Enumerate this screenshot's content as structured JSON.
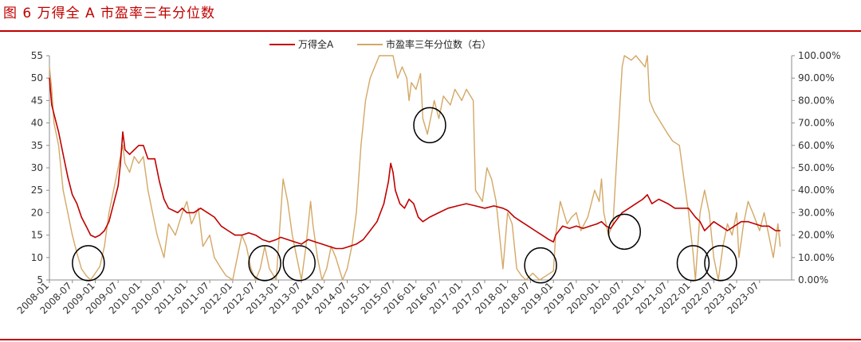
{
  "figure": {
    "title": "图 6 万得全 A 市盈率三年分位数"
  },
  "chart_data": {
    "type": "line",
    "x_labels": [
      "2008-01",
      "2008-07",
      "2009-01",
      "2009-07",
      "2010-01",
      "2010-07",
      "2011-01",
      "2011-07",
      "2012-01",
      "2012-07",
      "2013-01",
      "2013-07",
      "2014-01",
      "2014-07",
      "2015-01",
      "2015-07",
      "2016-01",
      "2016-07",
      "2017-01",
      "2017-07",
      "2018-01",
      "2018-07",
      "2019-01",
      "2019-07",
      "2020-01",
      "2020-07",
      "2021-01",
      "2021-07",
      "2022-01",
      "2022-07",
      "2023-01",
      "2023-07"
    ],
    "y_left": {
      "min": 5,
      "max": 55,
      "ticks": [
        5,
        10,
        15,
        20,
        25,
        30,
        35,
        40,
        45,
        50,
        55
      ]
    },
    "y_right": {
      "min": 0,
      "max": 100,
      "ticks": [
        "0.00%",
        "10.00%",
        "20.00%",
        "30.00%",
        "40.00%",
        "50.00%",
        "60.00%",
        "70.00%",
        "80.00%",
        "90.00%",
        "100.00%"
      ]
    },
    "legend_position": "top-center",
    "grid": false,
    "series": [
      {
        "name": "万得全A",
        "axis": "left",
        "color": "#c00000",
        "points": [
          [
            2008.0,
            50
          ],
          [
            2008.05,
            44
          ],
          [
            2008.1,
            42
          ],
          [
            2008.2,
            38
          ],
          [
            2008.3,
            33
          ],
          [
            2008.4,
            28
          ],
          [
            2008.5,
            24
          ],
          [
            2008.6,
            22
          ],
          [
            2008.7,
            19
          ],
          [
            2008.8,
            17
          ],
          [
            2008.9,
            15
          ],
          [
            2009.0,
            14.5
          ],
          [
            2009.1,
            15
          ],
          [
            2009.2,
            16
          ],
          [
            2009.3,
            18
          ],
          [
            2009.4,
            22
          ],
          [
            2009.5,
            26
          ],
          [
            2009.55,
            31
          ],
          [
            2009.6,
            38
          ],
          [
            2009.65,
            34
          ],
          [
            2009.75,
            33
          ],
          [
            2009.85,
            34
          ],
          [
            2009.95,
            35
          ],
          [
            2010.05,
            35
          ],
          [
            2010.15,
            32
          ],
          [
            2010.3,
            32
          ],
          [
            2010.4,
            27
          ],
          [
            2010.5,
            23
          ],
          [
            2010.6,
            21
          ],
          [
            2010.8,
            20
          ],
          [
            2010.9,
            21
          ],
          [
            2011.0,
            20
          ],
          [
            2011.15,
            20
          ],
          [
            2011.3,
            21
          ],
          [
            2011.45,
            20
          ],
          [
            2011.6,
            19
          ],
          [
            2011.75,
            17
          ],
          [
            2011.9,
            16
          ],
          [
            2012.05,
            15
          ],
          [
            2012.2,
            15
          ],
          [
            2012.35,
            15.5
          ],
          [
            2012.5,
            15
          ],
          [
            2012.65,
            14
          ],
          [
            2012.8,
            13.5
          ],
          [
            2012.95,
            14
          ],
          [
            2013.05,
            14.5
          ],
          [
            2013.2,
            14
          ],
          [
            2013.35,
            13.5
          ],
          [
            2013.5,
            13
          ],
          [
            2013.65,
            14
          ],
          [
            2013.8,
            13.5
          ],
          [
            2013.95,
            13
          ],
          [
            2014.1,
            12.5
          ],
          [
            2014.25,
            12
          ],
          [
            2014.4,
            12
          ],
          [
            2014.55,
            12.5
          ],
          [
            2014.7,
            13
          ],
          [
            2014.85,
            14
          ],
          [
            2015.0,
            16
          ],
          [
            2015.15,
            18
          ],
          [
            2015.3,
            22
          ],
          [
            2015.4,
            27
          ],
          [
            2015.45,
            31
          ],
          [
            2015.5,
            29
          ],
          [
            2015.55,
            25
          ],
          [
            2015.65,
            22
          ],
          [
            2015.75,
            21
          ],
          [
            2015.85,
            23
          ],
          [
            2015.95,
            22
          ],
          [
            2016.05,
            19
          ],
          [
            2016.15,
            18
          ],
          [
            2016.3,
            19
          ],
          [
            2016.5,
            20
          ],
          [
            2016.7,
            21
          ],
          [
            2016.9,
            21.5
          ],
          [
            2017.1,
            22
          ],
          [
            2017.3,
            21.5
          ],
          [
            2017.5,
            21
          ],
          [
            2017.7,
            21.5
          ],
          [
            2017.9,
            21
          ],
          [
            2018.0,
            20.5
          ],
          [
            2018.15,
            19
          ],
          [
            2018.3,
            18
          ],
          [
            2018.45,
            17
          ],
          [
            2018.6,
            16
          ],
          [
            2018.75,
            15
          ],
          [
            2018.9,
            14
          ],
          [
            2019.0,
            13.5
          ],
          [
            2019.05,
            15
          ],
          [
            2019.2,
            17
          ],
          [
            2019.35,
            16.5
          ],
          [
            2019.5,
            17
          ],
          [
            2019.65,
            16.5
          ],
          [
            2019.8,
            17
          ],
          [
            2019.95,
            17.5
          ],
          [
            2020.05,
            18
          ],
          [
            2020.15,
            17
          ],
          [
            2020.25,
            16.5
          ],
          [
            2020.35,
            18
          ],
          [
            2020.5,
            20
          ],
          [
            2020.65,
            21
          ],
          [
            2020.8,
            22
          ],
          [
            2020.95,
            23
          ],
          [
            2021.05,
            24
          ],
          [
            2021.15,
            22
          ],
          [
            2021.3,
            23
          ],
          [
            2021.5,
            22
          ],
          [
            2021.65,
            21
          ],
          [
            2021.8,
            21
          ],
          [
            2021.95,
            21
          ],
          [
            2022.1,
            19
          ],
          [
            2022.2,
            18
          ],
          [
            2022.3,
            16
          ],
          [
            2022.4,
            17
          ],
          [
            2022.5,
            18
          ],
          [
            2022.65,
            17
          ],
          [
            2022.8,
            16
          ],
          [
            2022.95,
            17
          ],
          [
            2023.1,
            18
          ],
          [
            2023.25,
            18
          ],
          [
            2023.4,
            17.5
          ],
          [
            2023.55,
            17
          ],
          [
            2023.7,
            17
          ],
          [
            2023.85,
            16
          ],
          [
            2023.95,
            16
          ]
        ]
      },
      {
        "name": "市盈率三年分位数（右）",
        "axis": "right",
        "color": "#d4a866",
        "points": [
          [
            2008.0,
            95
          ],
          [
            2008.05,
            85
          ],
          [
            2008.1,
            70
          ],
          [
            2008.2,
            60
          ],
          [
            2008.3,
            40
          ],
          [
            2008.4,
            30
          ],
          [
            2008.5,
            20
          ],
          [
            2008.6,
            12
          ],
          [
            2008.7,
            5
          ],
          [
            2008.8,
            2
          ],
          [
            2008.9,
            0
          ],
          [
            2009.0,
            3
          ],
          [
            2009.1,
            6
          ],
          [
            2009.2,
            15
          ],
          [
            2009.3,
            30
          ],
          [
            2009.4,
            40
          ],
          [
            2009.5,
            50
          ],
          [
            2009.55,
            55
          ],
          [
            2009.6,
            60
          ],
          [
            2009.65,
            52
          ],
          [
            2009.75,
            48
          ],
          [
            2009.85,
            55
          ],
          [
            2009.95,
            52
          ],
          [
            2010.05,
            55
          ],
          [
            2010.15,
            40
          ],
          [
            2010.25,
            30
          ],
          [
            2010.35,
            20
          ],
          [
            2010.5,
            10
          ],
          [
            2010.6,
            25
          ],
          [
            2010.75,
            20
          ],
          [
            2010.9,
            30
          ],
          [
            2011.0,
            35
          ],
          [
            2011.1,
            25
          ],
          [
            2011.25,
            32
          ],
          [
            2011.35,
            15
          ],
          [
            2011.5,
            20
          ],
          [
            2011.6,
            10
          ],
          [
            2011.75,
            5
          ],
          [
            2011.85,
            2
          ],
          [
            2012.0,
            0
          ],
          [
            2012.1,
            10
          ],
          [
            2012.2,
            20
          ],
          [
            2012.3,
            15
          ],
          [
            2012.4,
            5
          ],
          [
            2012.5,
            0
          ],
          [
            2012.6,
            5
          ],
          [
            2012.7,
            15
          ],
          [
            2012.8,
            5
          ],
          [
            2012.95,
            0
          ],
          [
            2013.05,
            30
          ],
          [
            2013.1,
            45
          ],
          [
            2013.2,
            35
          ],
          [
            2013.3,
            20
          ],
          [
            2013.4,
            10
          ],
          [
            2013.5,
            0
          ],
          [
            2013.6,
            15
          ],
          [
            2013.7,
            35
          ],
          [
            2013.75,
            25
          ],
          [
            2013.85,
            10
          ],
          [
            2013.95,
            0
          ],
          [
            2014.05,
            5
          ],
          [
            2014.15,
            15
          ],
          [
            2014.25,
            10
          ],
          [
            2014.4,
            0
          ],
          [
            2014.5,
            5
          ],
          [
            2014.6,
            15
          ],
          [
            2014.7,
            30
          ],
          [
            2014.8,
            60
          ],
          [
            2014.9,
            80
          ],
          [
            2015.0,
            90
          ],
          [
            2015.1,
            95
          ],
          [
            2015.2,
            100
          ],
          [
            2015.35,
            100
          ],
          [
            2015.5,
            100
          ],
          [
            2015.6,
            90
          ],
          [
            2015.7,
            95
          ],
          [
            2015.8,
            90
          ],
          [
            2015.85,
            80
          ],
          [
            2015.9,
            88
          ],
          [
            2016.0,
            85
          ],
          [
            2016.1,
            92
          ],
          [
            2016.15,
            72
          ],
          [
            2016.25,
            65
          ],
          [
            2016.4,
            80
          ],
          [
            2016.5,
            72
          ],
          [
            2016.6,
            82
          ],
          [
            2016.75,
            78
          ],
          [
            2016.85,
            85
          ],
          [
            2017.0,
            80
          ],
          [
            2017.1,
            85
          ],
          [
            2017.25,
            80
          ],
          [
            2017.3,
            40
          ],
          [
            2017.45,
            35
          ],
          [
            2017.55,
            50
          ],
          [
            2017.65,
            45
          ],
          [
            2017.75,
            35
          ],
          [
            2017.9,
            5
          ],
          [
            2018.0,
            30
          ],
          [
            2018.1,
            25
          ],
          [
            2018.2,
            5
          ],
          [
            2018.3,
            2
          ],
          [
            2018.4,
            0
          ],
          [
            2018.55,
            3
          ],
          [
            2018.7,
            0
          ],
          [
            2018.85,
            2
          ],
          [
            2019.0,
            4
          ],
          [
            2019.05,
            20
          ],
          [
            2019.15,
            35
          ],
          [
            2019.3,
            25
          ],
          [
            2019.4,
            28
          ],
          [
            2019.5,
            30
          ],
          [
            2019.6,
            22
          ],
          [
            2019.75,
            28
          ],
          [
            2019.9,
            40
          ],
          [
            2020.0,
            35
          ],
          [
            2020.05,
            45
          ],
          [
            2020.1,
            30
          ],
          [
            2020.2,
            20
          ],
          [
            2020.3,
            25
          ],
          [
            2020.4,
            60
          ],
          [
            2020.5,
            95
          ],
          [
            2020.55,
            100
          ],
          [
            2020.7,
            98
          ],
          [
            2020.8,
            100
          ],
          [
            2021.0,
            95
          ],
          [
            2021.05,
            100
          ],
          [
            2021.1,
            80
          ],
          [
            2021.2,
            75
          ],
          [
            2021.35,
            70
          ],
          [
            2021.5,
            65
          ],
          [
            2021.6,
            62
          ],
          [
            2021.75,
            60
          ],
          [
            2021.85,
            45
          ],
          [
            2021.95,
            30
          ],
          [
            2022.05,
            12
          ],
          [
            2022.1,
            0
          ],
          [
            2022.2,
            30
          ],
          [
            2022.3,
            40
          ],
          [
            2022.4,
            30
          ],
          [
            2022.5,
            10
          ],
          [
            2022.6,
            0
          ],
          [
            2022.7,
            15
          ],
          [
            2022.8,
            25
          ],
          [
            2022.9,
            20
          ],
          [
            2023.0,
            30
          ],
          [
            2023.05,
            10
          ],
          [
            2023.15,
            25
          ],
          [
            2023.25,
            35
          ],
          [
            2023.35,
            30
          ],
          [
            2023.5,
            22
          ],
          [
            2023.6,
            30
          ],
          [
            2023.7,
            20
          ],
          [
            2023.8,
            10
          ],
          [
            2023.9,
            25
          ],
          [
            2023.95,
            15
          ]
        ]
      }
    ],
    "highlight_circles": [
      {
        "x": 2008.85,
        "y_right": 7.5
      },
      {
        "x": 2012.7,
        "y_right": 7.5
      },
      {
        "x": 2013.45,
        "y_right": 7.5
      },
      {
        "x": 2016.3,
        "y_right": 69
      },
      {
        "x": 2018.72,
        "y_right": 6.5
      },
      {
        "x": 2020.55,
        "y_right": 21.5
      },
      {
        "x": 2022.05,
        "y_right": 7.5
      },
      {
        "x": 2022.65,
        "y_right": 7.5
      }
    ]
  }
}
